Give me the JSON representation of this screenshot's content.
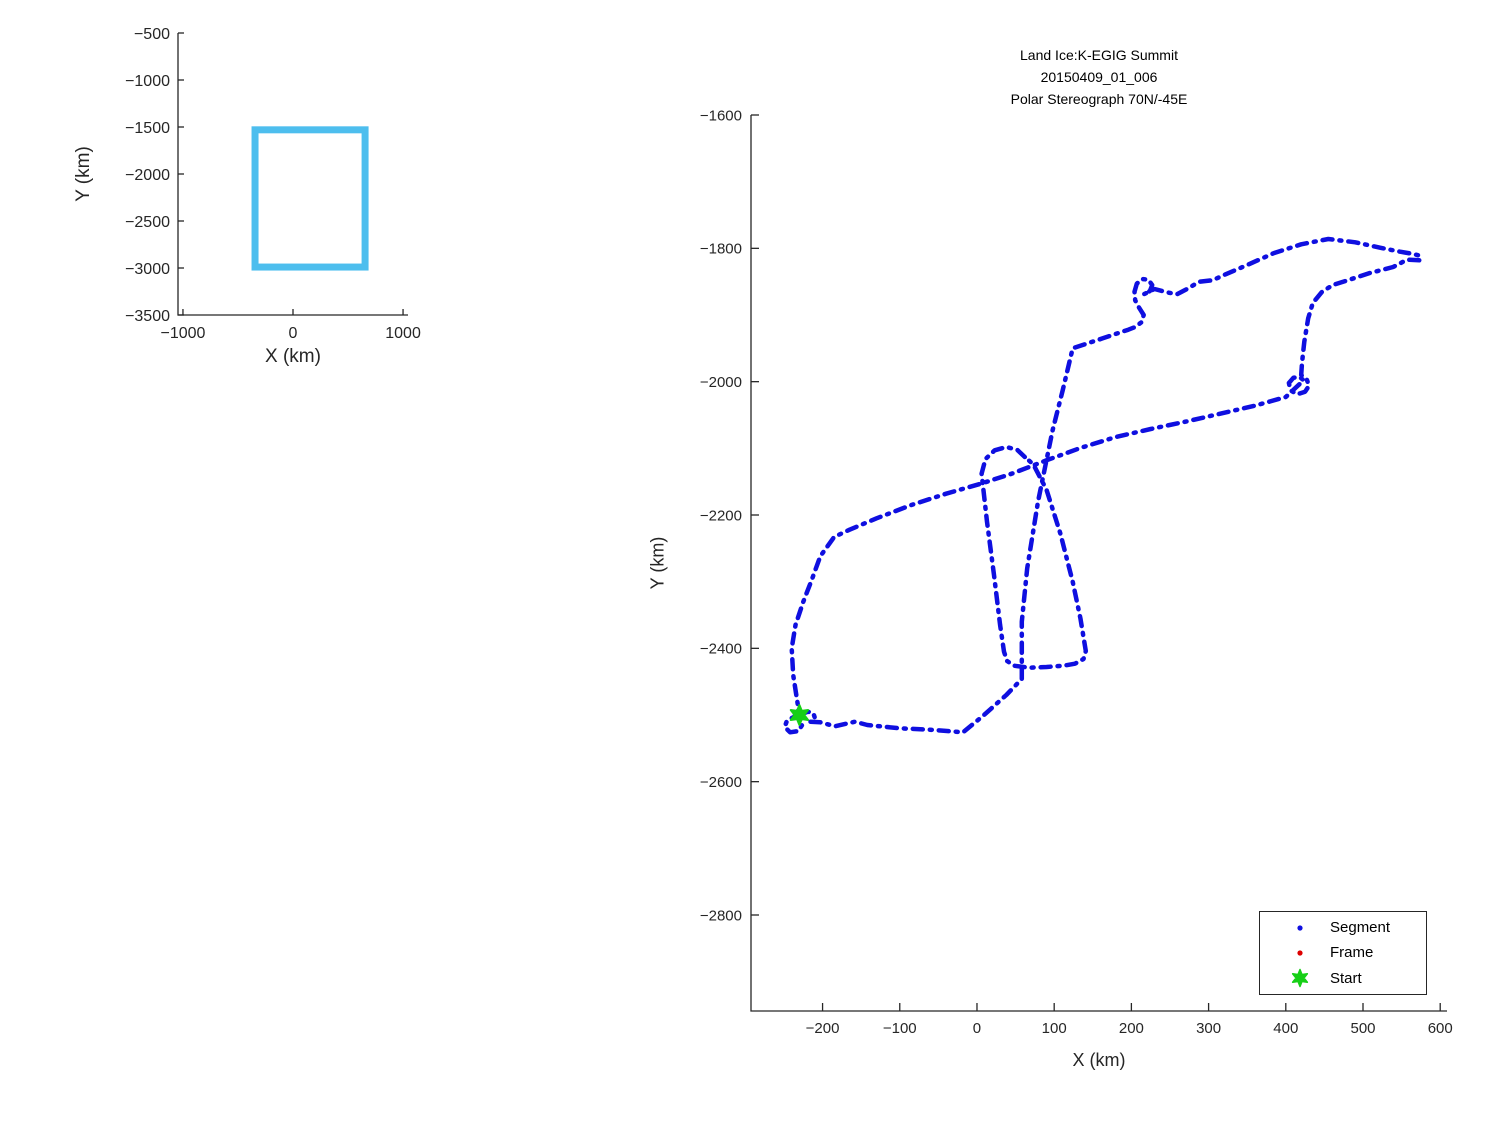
{
  "figure": {
    "background": "#ffffff",
    "track_color": "#0F0FE0",
    "frame_color": "#DD0000",
    "start_color": "#17CF17",
    "box_color": "#4DBEEE",
    "axis_color": "#262626"
  },
  "main": {
    "title_lines": [
      "Land Ice:K-EGIG Summit",
      "20150409_01_006",
      "Polar Stereograph 70N/-45E"
    ],
    "xlabel": "X (km)",
    "ylabel": "Y (km)"
  },
  "inset": {
    "xlabel": "X (km)",
    "ylabel": "Y (km)"
  },
  "legend": {
    "entries": [
      {
        "label": "Segment",
        "marker": "dot",
        "color": "#0F0FE0"
      },
      {
        "label": "Frame",
        "marker": "dot",
        "color": "#DD0000"
      },
      {
        "label": "Start",
        "marker": "star",
        "color": "#17CF17"
      }
    ]
  },
  "chart_data": [
    {
      "id": "overview",
      "type": "line",
      "xlabel": "X (km)",
      "ylabel": "Y (km)",
      "xlim": [
        -1045,
        1045
      ],
      "ylim": [
        -3500,
        -500
      ],
      "xticks": [
        -1000,
        0,
        1000
      ],
      "xtick_labels": [
        "−1000",
        "0",
        "1000"
      ],
      "yticks": [
        -500,
        -1000,
        -1500,
        -2000,
        -2500,
        -3000,
        -3500
      ],
      "ytick_labels": [
        "−500",
        "−1000",
        "−1500",
        "−2000",
        "−2500",
        "−3000",
        "−3500"
      ],
      "grid": false,
      "legend_position": "none",
      "series": [
        {
          "name": "coverage-box",
          "kind": "rect",
          "x": [
            -345,
            655
          ],
          "y": [
            -2990,
            -1530
          ],
          "color": "#4DBEEE",
          "line_width": 7
        }
      ]
    },
    {
      "id": "trajectory",
      "type": "line",
      "title": "Land Ice:K-EGIG Summit 20150409_01_006 Polar Stereograph 70N/-45E",
      "xlabel": "X (km)",
      "ylabel": "Y (km)",
      "xlim": [
        -292.7,
        608.8
      ],
      "ylim": [
        -2944,
        -1600
      ],
      "xticks": [
        -200,
        -100,
        0,
        100,
        200,
        300,
        400,
        500,
        600
      ],
      "xtick_labels": [
        "−200",
        "−100",
        "0",
        "100",
        "200",
        "300",
        "400",
        "500",
        "600"
      ],
      "yticks": [
        -1600,
        -1800,
        -2000,
        -2200,
        -2400,
        -2600,
        -2800
      ],
      "ytick_labels": [
        "−1600",
        "−1800",
        "−2000",
        "−2200",
        "−2400",
        "−2600",
        "−2800"
      ],
      "grid": false,
      "legend_position": "south-east",
      "series": [
        {
          "name": "segment-track",
          "kind": "path",
          "color": "#0F0FE0",
          "line_width": 4.5,
          "dash": [
            10,
            7,
            2,
            7
          ],
          "points": [
            [
              -230,
              -2500
            ],
            [
              -219,
              -2495
            ],
            [
              -212,
              -2497
            ],
            [
              -210,
              -2504
            ],
            [
              -216,
              -2510
            ],
            [
              -203,
              -2511
            ],
            [
              -184,
              -2517
            ],
            [
              -158,
              -2510
            ],
            [
              -142,
              -2515
            ],
            [
              -100,
              -2520
            ],
            [
              -61,
              -2522
            ],
            [
              -18,
              -2526
            ],
            [
              8,
              -2501
            ],
            [
              38,
              -2470
            ],
            [
              58,
              -2446
            ],
            [
              58,
              -2360
            ],
            [
              65,
              -2280
            ],
            [
              79,
              -2180
            ],
            [
              98,
              -2073
            ],
            [
              111,
              -2013
            ],
            [
              124,
              -1950
            ],
            [
              163,
              -1935
            ],
            [
              196,
              -1922
            ],
            [
              205,
              -1918
            ],
            [
              213,
              -1911
            ],
            [
              216,
              -1900
            ],
            [
              210,
              -1889
            ],
            [
              205,
              -1878
            ],
            [
              204,
              -1865
            ],
            [
              207,
              -1853
            ],
            [
              214,
              -1846
            ],
            [
              222,
              -1847
            ],
            [
              227,
              -1855
            ],
            [
              224,
              -1864
            ],
            [
              216,
              -1869
            ],
            [
              230,
              -1861
            ],
            [
              246,
              -1866
            ],
            [
              259,
              -1869
            ],
            [
              272,
              -1861
            ],
            [
              288,
              -1850
            ],
            [
              305,
              -1848
            ],
            [
              322,
              -1839
            ],
            [
              350,
              -1825
            ],
            [
              385,
              -1807
            ],
            [
              420,
              -1794
            ],
            [
              455,
              -1786
            ],
            [
              490,
              -1791
            ],
            [
              522,
              -1799
            ],
            [
              548,
              -1805
            ],
            [
              563,
              -1808
            ],
            [
              574,
              -1811
            ],
            [
              573,
              -1818
            ],
            [
              557,
              -1817
            ],
            [
              539,
              -1828
            ],
            [
              509,
              -1837
            ],
            [
              480,
              -1848
            ],
            [
              461,
              -1855
            ],
            [
              447,
              -1865
            ],
            [
              435,
              -1882
            ],
            [
              429,
              -1905
            ],
            [
              424,
              -1940
            ],
            [
              421,
              -1972
            ],
            [
              420,
              -1990
            ],
            [
              427,
              -1996
            ],
            [
              430,
              -2006
            ],
            [
              425,
              -2015
            ],
            [
              415,
              -2019
            ],
            [
              406,
              -2013
            ],
            [
              404,
              -2002
            ],
            [
              410,
              -1994
            ],
            [
              418,
              -1993
            ],
            [
              423,
              -1998
            ],
            [
              400,
              -2023
            ],
            [
              360,
              -2036
            ],
            [
              315,
              -2048
            ],
            [
              270,
              -2060
            ],
            [
              225,
              -2071
            ],
            [
              180,
              -2083
            ],
            [
              135,
              -2099
            ],
            [
              90,
              -2118
            ],
            [
              45,
              -2138
            ],
            [
              5,
              -2153
            ],
            [
              -40,
              -2168
            ],
            [
              -85,
              -2185
            ],
            [
              -130,
              -2205
            ],
            [
              -165,
              -2222
            ],
            [
              -185,
              -2233
            ],
            [
              -203,
              -2262
            ],
            [
              -214,
              -2297
            ],
            [
              -225,
              -2330
            ],
            [
              -235,
              -2365
            ],
            [
              -240,
              -2400
            ],
            [
              -238,
              -2440
            ],
            [
              -234,
              -2470
            ],
            [
              -231,
              -2492
            ],
            [
              -237,
              -2503
            ],
            [
              -246,
              -2508
            ],
            [
              -249,
              -2518
            ],
            [
              -242,
              -2526
            ],
            [
              -231,
              -2524
            ],
            [
              -226,
              -2514
            ],
            [
              -228,
              -2504
            ],
            [
              -230,
              -2500
            ]
          ]
        },
        {
          "name": "hairpin-track",
          "kind": "path",
          "color": "#0F0FE0",
          "line_width": 4.5,
          "dash": [
            10,
            7,
            2,
            7
          ],
          "points": [
            [
              62,
              -2113
            ],
            [
              52,
              -2102
            ],
            [
              38,
              -2098
            ],
            [
              23,
              -2103
            ],
            [
              11,
              -2116
            ],
            [
              6,
              -2138
            ],
            [
              13,
              -2210
            ],
            [
              22,
              -2290
            ],
            [
              30,
              -2365
            ],
            [
              35,
              -2405
            ],
            [
              39,
              -2419
            ],
            [
              48,
              -2426
            ],
            [
              68,
              -2429
            ],
            [
              90,
              -2428
            ],
            [
              112,
              -2426
            ],
            [
              127,
              -2423
            ],
            [
              138,
              -2416
            ],
            [
              141,
              -2404
            ],
            [
              134,
              -2355
            ],
            [
              124,
              -2300
            ],
            [
              108,
              -2228
            ],
            [
              90,
              -2162
            ],
            [
              73,
              -2124
            ],
            [
              62,
              -2113
            ]
          ]
        },
        {
          "name": "start-point",
          "kind": "star-marker",
          "color": "#17CF17",
          "size": 10,
          "point": [
            -230,
            -2500
          ]
        }
      ]
    }
  ]
}
